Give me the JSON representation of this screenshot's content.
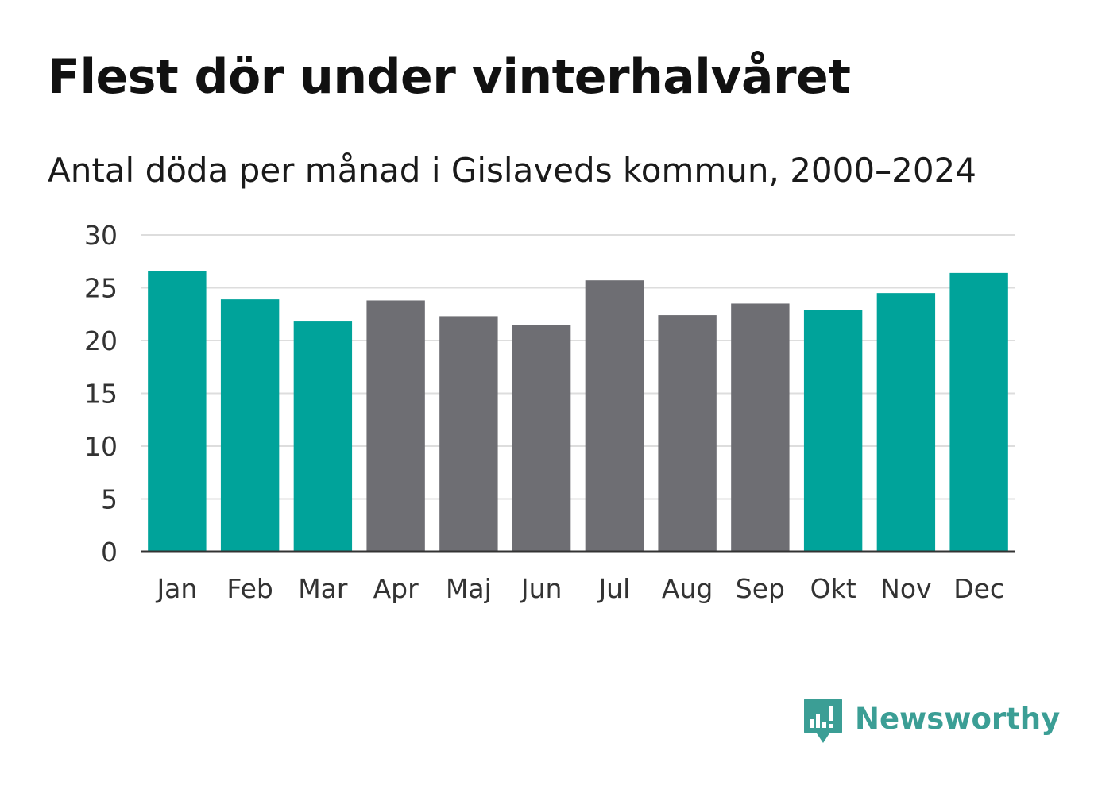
{
  "header": {
    "title": "Flest dör under vinterhalvåret",
    "subtitle": "Antal döda per månad i Gislaveds kommun, 2000–2024"
  },
  "chart_data": {
    "type": "bar",
    "title": "Flest dör under vinterhalvåret",
    "subtitle": "Antal döda per månad i Gislaveds kommun, 2000–2024",
    "xlabel": "",
    "ylabel": "",
    "categories": [
      "Jan",
      "Feb",
      "Mar",
      "Apr",
      "Maj",
      "Jun",
      "Jul",
      "Aug",
      "Sep",
      "Okt",
      "Nov",
      "Dec"
    ],
    "values": [
      26.6,
      23.9,
      21.8,
      23.8,
      22.3,
      21.5,
      25.7,
      22.4,
      23.5,
      22.9,
      24.5,
      26.4
    ],
    "groups": [
      "winter",
      "winter",
      "winter",
      "summer",
      "summer",
      "summer",
      "summer",
      "summer",
      "summer",
      "winter",
      "winter",
      "winter"
    ],
    "yticks": [
      0,
      5,
      10,
      15,
      20,
      25,
      30
    ],
    "ylim": [
      0,
      30
    ],
    "grid": true,
    "colors": {
      "winter": "#00a39a",
      "summer": "#6e6e73",
      "grid": "#dddddd",
      "axis": "#333333"
    }
  },
  "brand": {
    "name": "Newsworthy",
    "icon": "bar-chart-speech-bubble-icon",
    "color": "#3b9e95"
  }
}
